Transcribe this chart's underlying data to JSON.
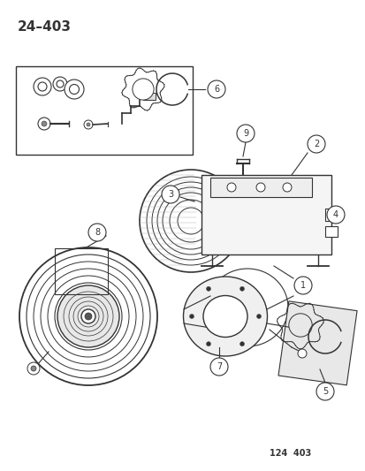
{
  "title": "24–403",
  "footer": "124  403",
  "bg_color": "#ffffff",
  "title_fontsize": 11,
  "footer_fontsize": 7,
  "c": "#333333",
  "lw_main": 1.0,
  "lw_thin": 0.6,
  "fig_w": 4.14,
  "fig_h": 5.33,
  "dpi": 100
}
